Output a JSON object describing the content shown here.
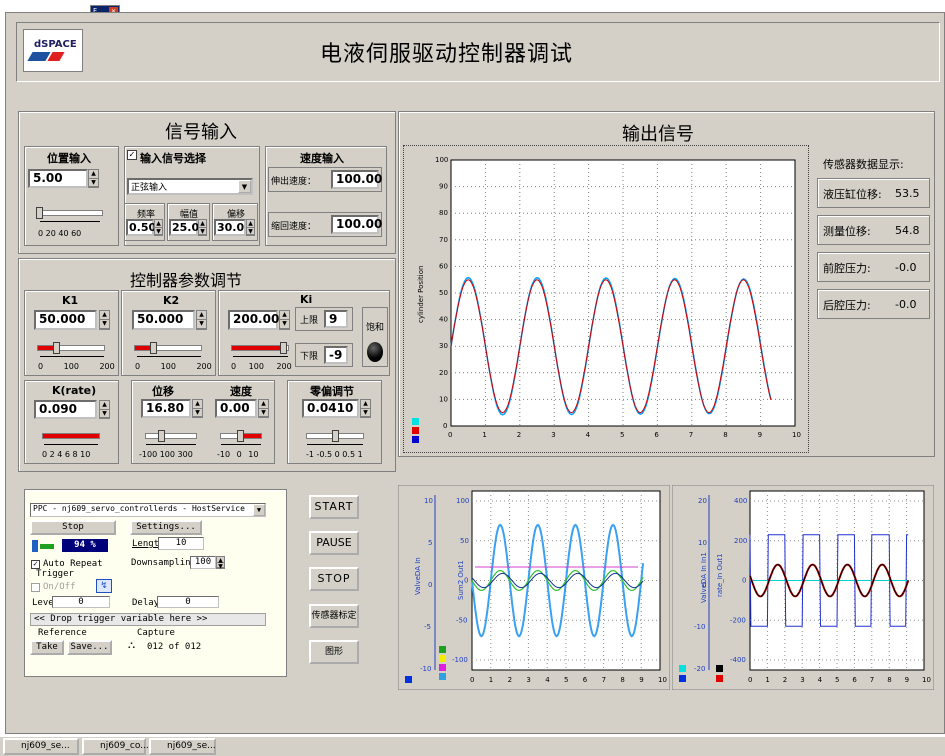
{
  "title": "电液伺服驱动控制器调试",
  "logo": "dSPACE",
  "mini_window": {
    "title": "F..",
    "close": "✕"
  },
  "signal_input": {
    "section_title": "信号输入",
    "position_input": {
      "label": "位置输入",
      "value": "5.00",
      "scale": "0 20 40 60"
    },
    "input_select": {
      "label": "输入信号选择",
      "checked": true,
      "selected": "正弦输入",
      "freq_label": "频率",
      "freq": "0.50",
      "amp_label": "幅值",
      "amp": "25.0",
      "offset_label": "偏移",
      "offset": "30.0"
    },
    "speed_input": {
      "label": "速度输入",
      "extend_label": "伸出速度：",
      "extend": "100.00",
      "retract_label": "缩回速度：",
      "retract": "100.00"
    }
  },
  "controller": {
    "section_title": "控制器参数调节",
    "k1": {
      "label": "K1",
      "value": "50.000",
      "scale": "0 100 200"
    },
    "k2": {
      "label": "K2",
      "value": "50.000",
      "scale": "0 100 200"
    },
    "ki": {
      "label": "Ki",
      "value": "200.00",
      "scale": "0 100 200",
      "upper_label": "上限",
      "upper": "9",
      "lower_label": "下限",
      "lower": "-9",
      "sat_label": "饱和"
    },
    "krate": {
      "label": "K(rate)",
      "value": "0.090",
      "scale": "0 2 4 6 8 10"
    },
    "disp": {
      "label": "位移",
      "value": "16.80",
      "scale": "-100 100 300"
    },
    "speed": {
      "label": "速度",
      "value": "0.00",
      "scale": "-10 0 10"
    },
    "zero": {
      "label": "零偏调节",
      "value": "0.0410",
      "scale": "-1 -0.5 0 0.5 1"
    }
  },
  "output": {
    "section_title": "输出信号",
    "ylabel": "cylinder Position",
    "xticks": [
      "0",
      "1",
      "2",
      "3",
      "4",
      "5",
      "6",
      "7",
      "8",
      "9",
      "10"
    ],
    "yticks": [
      "0",
      "10",
      "20",
      "30",
      "40",
      "50",
      "60",
      "70",
      "80",
      "90",
      "100"
    ],
    "sensor_title": "传感器数据显示:",
    "sensors": [
      {
        "label": "液压缸位移:",
        "value": "53.5"
      },
      {
        "label": "测量位移:",
        "value": "54.8"
      },
      {
        "label": "前腔压力:",
        "value": "-0.0"
      },
      {
        "label": "后腔压力:",
        "value": "-0.0"
      }
    ]
  },
  "host": {
    "service": "PPC - nj609_servo_controllerds - HostService",
    "stop": "Stop",
    "settings": "Settings...",
    "percent": "94 %",
    "length_label": "Length",
    "length": "10",
    "auto_repeat": "Auto Repeat",
    "downsampling_label": "Downsampling",
    "downsampling": "100",
    "trigger": "Trigger",
    "onoff": "On/Off",
    "level_label": "Level",
    "level": "0",
    "delay_label": "Delay",
    "delay": "0",
    "drop": "<< Drop trigger variable here >>",
    "reference": "Reference",
    "capture": "Capture",
    "take": "Take",
    "save": "Save...",
    "capture_count": "012 of 012"
  },
  "buttons": {
    "start": "START",
    "pause": "PAUSE",
    "stop": "STOP",
    "calib": "传感器标定",
    "graph": "图形"
  },
  "plot2": {
    "ylabel1": "ValveDA In",
    "ylabel2": "Sum2 Out1",
    "left_ticks": [
      "10",
      "5",
      "0",
      "-5",
      "-10"
    ],
    "right_ticks": [
      "100",
      "50",
      "0",
      "-50",
      "-100"
    ],
    "xticks": [
      "0",
      "1",
      "2",
      "3",
      "4",
      "5",
      "6",
      "7",
      "8",
      "9",
      "10"
    ]
  },
  "plot3": {
    "ylabel1": "ValveDA In In1",
    "ylabel2": "rate_In Out1",
    "left_ticks": [
      "20",
      "10",
      "0",
      "-10",
      "-20"
    ],
    "right_ticks": [
      "400",
      "200",
      "0",
      "-200",
      "-400"
    ],
    "xticks": [
      "0",
      "1",
      "2",
      "3",
      "4",
      "5",
      "6",
      "7",
      "8",
      "9",
      "10"
    ]
  },
  "taskbar": [
    "nj609_se...",
    "nj609_co...",
    "nj609_se..."
  ]
}
